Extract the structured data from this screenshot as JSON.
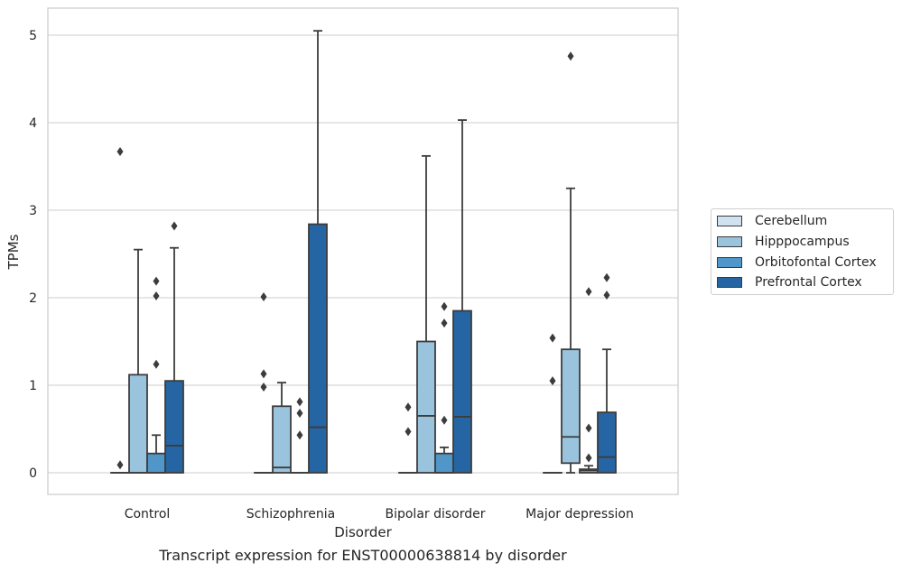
{
  "chart_data": {
    "type": "box",
    "title": "Transcript expression for ENST00000638814 by disorder",
    "xlabel": "Disorder",
    "ylabel": "TPMs",
    "ylim": [
      -0.25,
      5.3
    ],
    "yticks": [
      0,
      1,
      2,
      3,
      4,
      5
    ],
    "grid": true,
    "legend_position": "right",
    "categories": [
      "Control",
      "Schizophrenia",
      "Bipolar disorder",
      "Major depression"
    ],
    "series": [
      {
        "name": "Cerebellum",
        "color": "#d0e2f2",
        "boxes": [
          {
            "q1": 0,
            "median": 0,
            "q3": 0,
            "whislo": 0,
            "whishi": 0,
            "fliers": [
              0.09,
              3.67
            ]
          },
          {
            "q1": 0,
            "median": 0,
            "q3": 0,
            "whislo": 0,
            "whishi": 0,
            "fliers": [
              0.98,
              1.13,
              2.01
            ]
          },
          {
            "q1": 0,
            "median": 0,
            "q3": 0,
            "whislo": 0,
            "whishi": 0,
            "fliers": [
              0.47,
              0.75
            ]
          },
          {
            "q1": 0,
            "median": 0,
            "q3": 0,
            "whislo": 0,
            "whishi": 0,
            "fliers": [
              1.05,
              1.54
            ]
          }
        ]
      },
      {
        "name": "Hipppocampus",
        "color": "#9ac4de",
        "boxes": [
          {
            "q1": 0,
            "median": 0,
            "q3": 1.12,
            "whislo": 0,
            "whishi": 2.55,
            "fliers": []
          },
          {
            "q1": 0,
            "median": 0.06,
            "q3": 0.76,
            "whislo": 0,
            "whishi": 1.03,
            "fliers": []
          },
          {
            "q1": 0,
            "median": 0.65,
            "q3": 1.5,
            "whislo": 0,
            "whishi": 3.62,
            "fliers": []
          },
          {
            "q1": 0.11,
            "median": 0.41,
            "q3": 1.41,
            "whislo": 0,
            "whishi": 3.25,
            "fliers": [
              4.76
            ]
          }
        ]
      },
      {
        "name": "Orbitofontal Cortex",
        "color": "#5096c9",
        "boxes": [
          {
            "q1": 0,
            "median": 0,
            "q3": 0.22,
            "whislo": 0,
            "whishi": 0.43,
            "fliers": [
              1.24,
              2.02,
              2.19
            ]
          },
          {
            "q1": 0,
            "median": 0,
            "q3": 0,
            "whislo": 0,
            "whishi": 0,
            "fliers": [
              0.43,
              0.68,
              0.81
            ]
          },
          {
            "q1": 0,
            "median": 0,
            "q3": 0.22,
            "whislo": 0,
            "whishi": 0.29,
            "fliers": [
              0.6,
              1.71,
              1.9
            ]
          },
          {
            "q1": 0,
            "median": 0.03,
            "q3": 0.04,
            "whislo": 0,
            "whishi": 0.08,
            "fliers": [
              0.17,
              0.51,
              2.07
            ]
          }
        ]
      },
      {
        "name": "Prefrontal Cortex",
        "color": "#2565a3",
        "boxes": [
          {
            "q1": 0,
            "median": 0.31,
            "q3": 1.05,
            "whislo": 0,
            "whishi": 2.57,
            "fliers": [
              2.82
            ]
          },
          {
            "q1": 0,
            "median": 0.52,
            "q3": 2.84,
            "whislo": 0,
            "whishi": 5.05,
            "fliers": []
          },
          {
            "q1": 0,
            "median": 0.64,
            "q3": 1.85,
            "whislo": 0,
            "whishi": 4.03,
            "fliers": []
          },
          {
            "q1": 0,
            "median": 0.18,
            "q3": 0.69,
            "whislo": 0,
            "whishi": 1.41,
            "fliers": [
              2.03,
              2.23
            ]
          }
        ]
      }
    ]
  }
}
